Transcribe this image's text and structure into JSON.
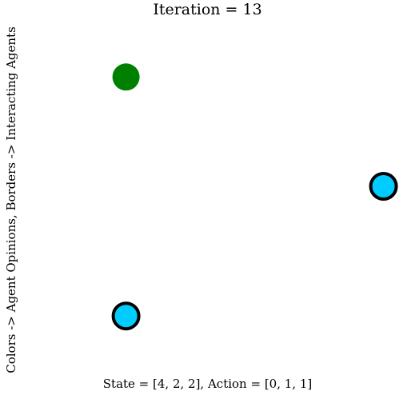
{
  "chart_data": {
    "type": "scatter",
    "title": "Iteration = 13",
    "xlabel": "State = [4, 2, 2], Action = [0, 1, 1]",
    "ylabel": "Colors -> Agent Opinions, Borders -> Interacting Agents",
    "xlim": [
      0,
      1
    ],
    "ylim": [
      0,
      1
    ],
    "grid": false,
    "points": [
      {
        "x": 0.26,
        "y": 0.84,
        "color": "#008000",
        "interacting": false
      },
      {
        "x": 0.96,
        "y": 0.52,
        "color": "#00ccff",
        "interacting": true
      },
      {
        "x": 0.26,
        "y": 0.14,
        "color": "#00ccff",
        "interacting": true
      }
    ],
    "colors": {
      "border": "#000000"
    }
  }
}
